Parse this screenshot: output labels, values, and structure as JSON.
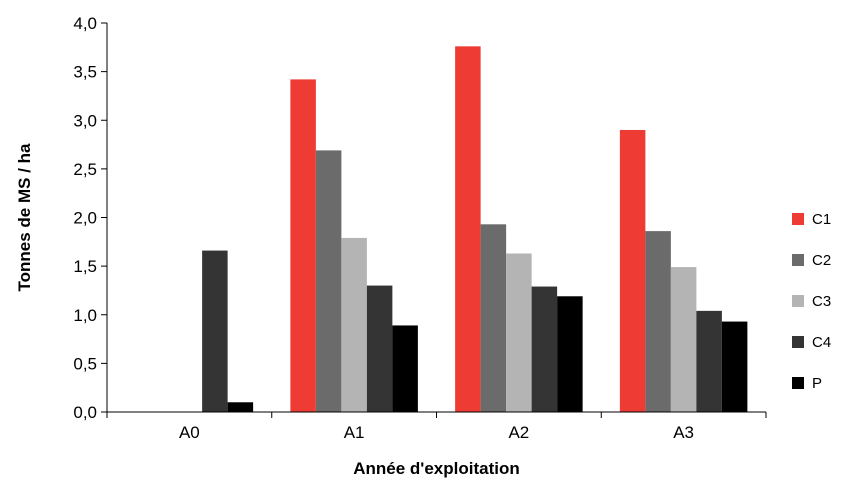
{
  "chart_data": {
    "type": "bar",
    "title": "",
    "xlabel": "Année d'exploitation",
    "ylabel": "Tonnes de MS / ha",
    "ylim": [
      0,
      4.0
    ],
    "y_ticks": [
      "0,0",
      "0,5",
      "1,0",
      "1,5",
      "2,0",
      "2,5",
      "3,0",
      "3,5",
      "4,0"
    ],
    "y_tick_values": [
      0,
      0.5,
      1.0,
      1.5,
      2.0,
      2.5,
      3.0,
      3.5,
      4.0
    ],
    "categories": [
      "A0",
      "A1",
      "A2",
      "A3"
    ],
    "grid": false,
    "legend_position": "right",
    "series": [
      {
        "name": "C1",
        "color": "#EE3B33",
        "values": [
          0,
          3.42,
          3.76,
          2.9
        ]
      },
      {
        "name": "C2",
        "color": "#6B6B6B",
        "values": [
          0,
          2.69,
          1.93,
          1.86
        ]
      },
      {
        "name": "C3",
        "color": "#B4B4B4",
        "values": [
          0,
          1.79,
          1.63,
          1.49
        ]
      },
      {
        "name": "C4",
        "color": "#343434",
        "values": [
          1.66,
          1.3,
          1.29,
          1.04
        ]
      },
      {
        "name": "P",
        "color": "#000000",
        "values": [
          0.1,
          0.89,
          1.19,
          0.93
        ]
      }
    ]
  }
}
